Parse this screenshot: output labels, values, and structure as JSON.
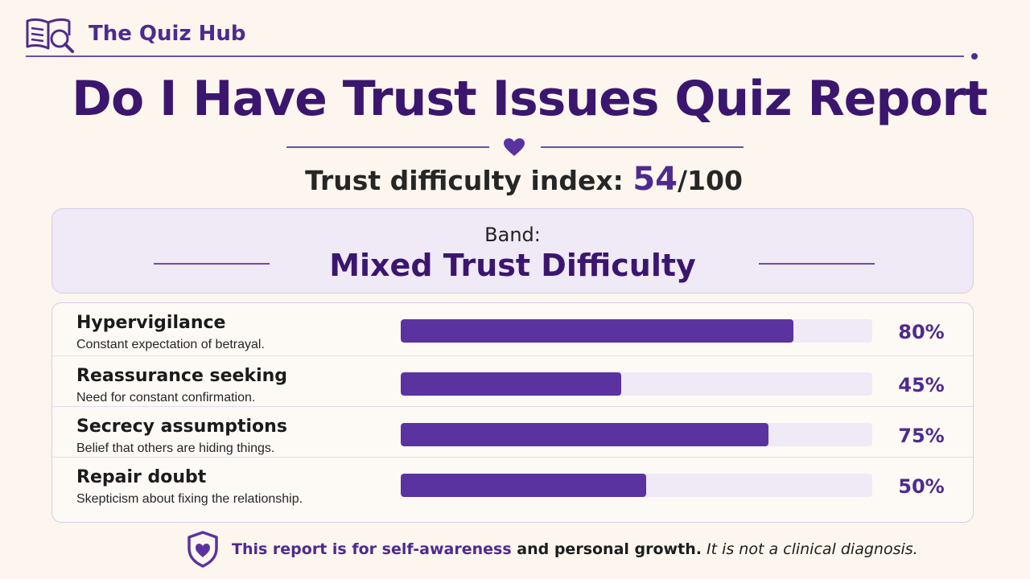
{
  "brand": {
    "name": "The Quiz Hub",
    "icon": "book-magnifier-icon",
    "accent": "#4f2a8e"
  },
  "title": "Do I Have Trust Issues Quiz Report",
  "index": {
    "label": "Trust difficulty index:",
    "score": "54",
    "max": "/100"
  },
  "band": {
    "label": "Band:",
    "value": "Mixed Trust Difficulty"
  },
  "subscales": [
    {
      "name": "Hypervigilance",
      "description": "Constant expectation of betrayal.",
      "percent": 80,
      "percent_label": "80%"
    },
    {
      "name": "Reassurance seeking",
      "description": "Need for constant confirmation.",
      "percent": 45,
      "percent_label": "45%"
    },
    {
      "name": "Secrecy assumptions",
      "description": "Belief that others are hiding things.",
      "percent": 75,
      "percent_label": "75%"
    },
    {
      "name": "Repair doubt",
      "description": "Skepticism about fixing the relationship.",
      "percent": 50,
      "percent_label": "50%"
    }
  ],
  "footer": {
    "icon": "shield-heart-icon",
    "part1": "This report is for self-awareness",
    "part2": " and personal growth.",
    "part3": " It is not a clinical diagnosis."
  },
  "colors": {
    "bar_fill": "#5b33a0",
    "bar_track": "#f0e9f6",
    "title": "#3b166f"
  }
}
